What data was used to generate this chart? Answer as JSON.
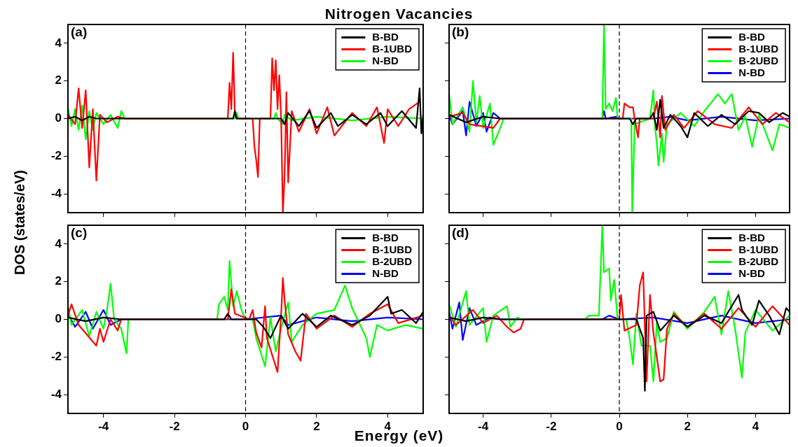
{
  "chart_data": [
    {
      "type": "line",
      "title": "Nitrogen Vacancies",
      "xlabel": "Energy (eV)",
      "ylabel": "DOS (states/eV)",
      "annotations": [
        "(a)"
      ],
      "xlim": [
        -5,
        5
      ],
      "ylim": [
        -5,
        5
      ],
      "xticks": [
        -4,
        -2,
        0,
        2,
        4
      ],
      "yticks": [
        -4,
        -2,
        0,
        2,
        4
      ],
      "tick_labels": "y",
      "legend": "top right",
      "ref_lines": [
        {
          "axis": "x",
          "value": 0,
          "color": "#000000",
          "line_style": "dashed"
        }
      ],
      "series": [
        {
          "name": "B-BD",
          "color": "#000000",
          "x": [
            -5,
            -4.8,
            -4.6,
            -4.4,
            -4.2,
            -3.5,
            -0.35,
            -0.3,
            -0.25,
            1.0,
            1.1,
            1.2,
            1.5,
            1.8,
            2.0,
            2.4,
            2.6,
            3.0,
            3.4,
            3.8,
            4.0,
            4.4,
            4.8,
            4.9,
            4.95,
            5
          ],
          "values": [
            0,
            0.1,
            -0.1,
            0.1,
            0,
            0,
            0,
            0.4,
            0,
            0,
            -0.3,
            0.3,
            -0.4,
            0.4,
            -0.5,
            0.3,
            -0.4,
            0.2,
            -0.3,
            0.3,
            -0.4,
            0.4,
            -0.5,
            1.6,
            -0.8,
            0.2
          ]
        },
        {
          "name": "B-1UBD",
          "color": "#ff0000",
          "x": [
            -5,
            -4.8,
            -4.7,
            -4.6,
            -4.5,
            -4.4,
            -4.3,
            -4.2,
            -4.1,
            -3.9,
            -3.6,
            -3.4,
            -0.5,
            -0.45,
            -0.4,
            -0.35,
            -0.3,
            -0.25,
            0.2,
            0.25,
            0.3,
            0.35,
            0.4,
            0.7,
            0.75,
            0.8,
            0.85,
            0.9,
            0.95,
            1.0,
            1.05,
            1.1,
            1.15,
            1.2,
            1.3,
            1.5,
            1.8,
            2.0,
            2.3,
            2.5,
            3.0,
            3.4,
            3.7,
            3.9,
            4.0,
            4.3,
            4.6,
            4.9
          ],
          "values": [
            0.2,
            -0.3,
            1.6,
            -0.5,
            1.5,
            -2.6,
            0.5,
            -3.3,
            0.2,
            -0.2,
            0.1,
            0,
            0,
            1.9,
            0.5,
            3.5,
            0.2,
            0,
            0,
            -1.5,
            -2.2,
            -3.1,
            0,
            0,
            3.2,
            1.5,
            3.1,
            0.5,
            2.3,
            0.1,
            -5,
            -3,
            1.4,
            -3.4,
            0.4,
            -0.7,
            0.5,
            -0.8,
            0.6,
            -0.9,
            0.3,
            -0.4,
            0.6,
            -1.3,
            0.5,
            -0.4,
            0.5,
            0.9
          ]
        },
        {
          "name": "N-BD",
          "color": "#00ff00",
          "x": [
            -5,
            -4.9,
            -4.8,
            -4.7,
            -4.6,
            -4.5,
            -4.4,
            -4.3,
            -4.2,
            -4,
            -3.8,
            -3.6,
            -3.5,
            -3.4,
            -0.3,
            -0.25,
            -0.2,
            0.8,
            0.85,
            0.9,
            1.05,
            1.1,
            1.3,
            2,
            3,
            4,
            5
          ],
          "values": [
            0.6,
            -0.4,
            0.5,
            -0.6,
            0.7,
            -1.1,
            0.4,
            -0.6,
            0.3,
            -0.3,
            0.2,
            -0.5,
            0.4,
            0,
            0,
            0.3,
            0,
            0,
            0.3,
            0,
            -0.3,
            0.2,
            -0.1,
            0.1,
            -0.1,
            0.1,
            0
          ]
        }
      ]
    },
    {
      "type": "line",
      "annotations": [
        "(b)"
      ],
      "xlim": [
        -5,
        5
      ],
      "ylim": [
        -5,
        5
      ],
      "xticks": [
        -4,
        -2,
        0,
        2,
        4
      ],
      "yticks": [
        -4,
        -2,
        0,
        2,
        4
      ],
      "tick_labels": false,
      "legend": "top right",
      "ref_lines": [
        {
          "axis": "x",
          "value": 0,
          "color": "#000000",
          "line_style": "dashed"
        }
      ],
      "series": [
        {
          "name": "B-BD",
          "color": "#000000",
          "x": [
            -5,
            -4.5,
            -4,
            -3.5,
            0.3,
            0.4,
            0.5,
            0.9,
            1.0,
            1.1,
            1.2,
            1.3,
            1.5,
            1.8,
            2.0,
            2.2,
            2.6,
            3,
            3.4,
            3.8,
            4.1,
            4.4,
            4.8,
            5
          ],
          "values": [
            0.2,
            -0.2,
            0.1,
            0,
            0,
            -0.3,
            0,
            0,
            0.3,
            -0.6,
            1.0,
            -0.5,
            0.2,
            -0.4,
            -1.0,
            0.3,
            -0.4,
            0.2,
            -0.3,
            0.4,
            0.3,
            -0.2,
            0.3,
            0.1
          ]
        },
        {
          "name": "B-1UBD",
          "color": "#ff0000",
          "x": [
            -5,
            -4.6,
            -4.4,
            -3.7,
            -3.5,
            0.1,
            0.15,
            0.3,
            0.4,
            0.45,
            0.55,
            0.6,
            1,
            1.1,
            1.2,
            1.25,
            1.35,
            1.6,
            1.9,
            2.3,
            2.8,
            3.3,
            3.8,
            4.2,
            4.6,
            5
          ],
          "values": [
            0.1,
            0.3,
            -0.3,
            -0.5,
            0,
            0,
            0.8,
            0.6,
            0.6,
            0,
            -1.0,
            0,
            0,
            0.9,
            -1.0,
            1.2,
            -0.6,
            0.2,
            -0.5,
            0.4,
            -0.3,
            -0.5,
            0.6,
            -0.3,
            0.3,
            -0.2
          ]
        },
        {
          "name": "B-2UBD",
          "color": "#00ff00",
          "x": [
            -5,
            -4.9,
            -4.6,
            -4.4,
            -4.3,
            -4.2,
            -4.1,
            -4,
            -3.8,
            -3.7,
            -3.5,
            -3.4,
            -0.5,
            -0.45,
            -0.4,
            -0.3,
            -0.2,
            -0.1,
            -0.05,
            0.35,
            0.38,
            0.45,
            0.9,
            1.0,
            1.05,
            1.1,
            1.15,
            1.25,
            1.3,
            1.4,
            1.8,
            2.2,
            2.5,
            2.9,
            3.1,
            3.3,
            3.5,
            3.7,
            3.9,
            4.1,
            4.5,
            4.7,
            5
          ],
          "values": [
            1.3,
            -0.3,
            0.6,
            -0.7,
            2.0,
            -0.2,
            1.2,
            -0.5,
            0.8,
            -1.4,
            -0.5,
            0,
            0,
            5,
            0.5,
            0.8,
            0.4,
            1.1,
            0,
            0,
            -5,
            -0.3,
            0,
            1.5,
            -0.5,
            -1.3,
            -2.5,
            -0.8,
            -2.3,
            -0.3,
            0.3,
            -0.4,
            0.4,
            1.3,
            0.8,
            1.3,
            -0.6,
            0.1,
            -1.5,
            0.2,
            -1.7,
            -0.3,
            -0.5
          ]
        },
        {
          "name": "N-BD",
          "color": "#0000ff",
          "x": [
            -5,
            -4.9,
            -4.6,
            -4.5,
            -4.4,
            -4.2,
            -4,
            -3.9,
            -3.7,
            -3.5,
            -0.5,
            -0.45,
            -0.4,
            -0.1,
            0,
            1,
            1.5,
            2,
            3,
            4,
            5
          ],
          "values": [
            0.2,
            -0.3,
            0.4,
            -0.9,
            0.9,
            -0.4,
            0.3,
            -0.7,
            0.3,
            0,
            0,
            0.4,
            0,
            0.1,
            0,
            0,
            0.1,
            -0.1,
            0.1,
            -0.1,
            0
          ]
        }
      ]
    },
    {
      "type": "line",
      "annotations": [
        "(c)"
      ],
      "xlim": [
        -5,
        5
      ],
      "ylim": [
        -5,
        5
      ],
      "xticks": [
        -4,
        -2,
        0,
        2,
        4
      ],
      "yticks": [
        -4,
        -2,
        0,
        2,
        4
      ],
      "legend": "top right",
      "ref_lines": [
        {
          "axis": "x",
          "value": 0,
          "color": "#000000",
          "line_style": "dashed"
        }
      ],
      "series": [
        {
          "name": "B-BD",
          "color": "#000000",
          "x": [
            -5,
            -4.5,
            -4,
            -3.5,
            -0.6,
            -0.5,
            -0.4,
            0.3,
            0.5,
            0.7,
            1.0,
            1.2,
            1.6,
            2,
            2.4,
            3,
            3.5,
            4.0,
            4.1,
            4.4,
            4.8,
            5
          ],
          "values": [
            0.1,
            -0.1,
            0.1,
            0,
            0,
            0.3,
            0,
            0,
            -0.4,
            -1.0,
            0.2,
            -0.5,
            0.3,
            -0.4,
            0.2,
            -0.3,
            0.2,
            1.2,
            0.3,
            0.5,
            -0.2,
            0.4
          ]
        },
        {
          "name": "B-1UBD",
          "color": "#ff0000",
          "x": [
            -5,
            -4.9,
            -4.7,
            -4.2,
            -4.1,
            -4,
            -3.8,
            -3.6,
            -3.5,
            -0.5,
            -0.4,
            -0.3,
            0.1,
            0.2,
            0.3,
            0.45,
            0.55,
            0.6,
            0.9,
            1.0,
            1.05,
            1.1,
            1.2,
            1.4,
            1.55,
            1.7,
            2,
            2.5,
            3,
            3.5,
            4,
            4.3,
            5
          ],
          "values": [
            0.2,
            0.8,
            -0.3,
            -1.4,
            -0.5,
            -1.2,
            0,
            -0.6,
            0,
            0,
            1.6,
            0.3,
            0,
            0.5,
            -0.7,
            -1.5,
            0.7,
            -1.0,
            -2.8,
            0.2,
            2.2,
            1.0,
            -0.8,
            -1.7,
            -2.2,
            0.3,
            -0.5,
            0.2,
            -0.4,
            0.3,
            0.8,
            -0.2,
            0.2
          ]
        },
        {
          "name": "B-2UBD",
          "color": "#00ff00",
          "x": [
            -5,
            -4.9,
            -4.6,
            -4.4,
            -4.2,
            -4,
            -3.9,
            -3.8,
            -3.7,
            -3.5,
            -3.35,
            -3.3,
            -0.8,
            -0.75,
            -0.6,
            -0.5,
            -0.45,
            -0.35,
            -0.25,
            -0.1,
            0,
            0.2,
            0.3,
            0.55,
            0.7,
            0.85,
            1.0,
            1.2,
            1.3,
            1.6,
            2.0,
            2.5,
            2.8,
            3.0,
            3.4,
            3.5,
            3.7,
            4,
            4.5,
            5
          ],
          "values": [
            0.7,
            -0.3,
            0.5,
            -0.9,
            0.4,
            -0.5,
            0.5,
            1.9,
            0,
            -0.5,
            -1.8,
            0,
            0,
            0.8,
            1.2,
            0.5,
            3.1,
            0.7,
            1.5,
            0.4,
            0,
            0,
            -1.0,
            -2.5,
            0.1,
            -1.7,
            -0.5,
            0.9,
            -1.2,
            -0.3,
            0.3,
            0.5,
            1.8,
            0.6,
            -1.0,
            -2.0,
            -0.3,
            -0.6,
            -0.3,
            -0.5
          ]
        },
        {
          "name": "N-BD",
          "color": "#0000ff",
          "x": [
            -5,
            -4.8,
            -4.5,
            -4.3,
            -4,
            -3.8,
            -3.5,
            -0.3,
            0,
            1,
            1.2,
            2,
            3,
            4,
            5
          ],
          "values": [
            0.3,
            -0.4,
            0.4,
            -0.5,
            0.5,
            -0.3,
            0,
            0,
            0,
            0.2,
            -0.3,
            0.1,
            -0.1,
            0.1,
            0
          ]
        }
      ]
    },
    {
      "type": "line",
      "annotations": [
        "(d)"
      ],
      "xlim": [
        -5,
        5
      ],
      "ylim": [
        -5,
        5
      ],
      "xticks": [
        -4,
        -2,
        0,
        2,
        4
      ],
      "yticks": [
        -4,
        -2,
        0,
        2,
        4
      ],
      "tick_labels": "x",
      "legend": "top right",
      "ref_lines": [
        {
          "axis": "x",
          "value": 0,
          "color": "#000000",
          "line_style": "dashed"
        }
      ],
      "series": [
        {
          "name": "B-BD",
          "color": "#000000",
          "x": [
            -5,
            -4.5,
            -4,
            -3.5,
            -0.5,
            0.5,
            0.7,
            0.75,
            0.8,
            1.0,
            1.2,
            1.6,
            2,
            2.5,
            3,
            3.5,
            3.6,
            3.9,
            4.1,
            4.4,
            4.7,
            4.9,
            5
          ],
          "values": [
            0.1,
            -0.1,
            0.1,
            0,
            0,
            0,
            -1.0,
            -3.8,
            0.2,
            0.4,
            -0.6,
            0.2,
            -0.4,
            0.2,
            -0.2,
            1.3,
            0.5,
            -0.3,
            1.0,
            0.2,
            -0.8,
            0.6,
            0.4
          ]
        },
        {
          "name": "B-1UBD",
          "color": "#ff0000",
          "x": [
            -5,
            -4.8,
            -4.3,
            -4,
            -3.6,
            -3.3,
            -3.1,
            -2.9,
            -2.8,
            -0.3,
            0,
            0.05,
            0.15,
            0.5,
            0.6,
            0.7,
            0.8,
            0.9,
            1.0,
            1.2,
            1.3,
            1.4,
            1.6,
            2,
            2.5,
            3,
            3.5,
            4,
            4.5,
            5
          ],
          "values": [
            0.2,
            -0.3,
            0.5,
            -0.2,
            0.2,
            -0.4,
            -0.7,
            -0.5,
            0,
            0,
            0,
            1.3,
            -0.6,
            -0.3,
            1.8,
            2.5,
            -3.3,
            1.3,
            -0.7,
            -3.3,
            -3.2,
            -0.5,
            0.3,
            -0.4,
            0.3,
            -0.5,
            0.6,
            -0.4,
            0.7,
            -0.3
          ]
        },
        {
          "name": "B-2UBD",
          "color": "#00ff00",
          "x": [
            -5,
            -4.8,
            -4.5,
            -4.4,
            -4,
            -3.9,
            -3.7,
            -3.3,
            -3.2,
            -3,
            -2.9,
            -1,
            -0.9,
            -0.6,
            -0.5,
            -0.45,
            -0.3,
            -0.25,
            -0.15,
            -0.05,
            0.2,
            0.3,
            0.4,
            0.5,
            0.65,
            0.9,
            1.0,
            1.1,
            1.2,
            1.4,
            1.6,
            2,
            2.5,
            2.8,
            3.0,
            3.2,
            3.4,
            3.6,
            3.7,
            4,
            4.5,
            5
          ],
          "values": [
            0.8,
            -0.4,
            1.5,
            -0.3,
            0.6,
            -1.2,
            0.2,
            0.7,
            -0.4,
            0.1,
            0,
            0,
            0.2,
            0.2,
            5,
            2.5,
            2.7,
            1.0,
            2.1,
            0,
            0,
            -1.0,
            -2.4,
            0.3,
            -1.4,
            -1.4,
            -3.3,
            -0.2,
            -1.2,
            -1.0,
            0.4,
            -0.5,
            0.4,
            1.2,
            -0.8,
            1.5,
            -0.5,
            -3.1,
            -0.7,
            0.5,
            -0.6,
            0.2
          ]
        },
        {
          "name": "N-BD",
          "color": "#0000ff",
          "x": [
            -5,
            -4.9,
            -4.7,
            -4.6,
            -4.4,
            -4.2,
            -3.8,
            -3.5,
            -0.5,
            -0.3,
            0,
            1,
            2,
            3,
            4,
            5
          ],
          "values": [
            0.4,
            -0.5,
            0.9,
            -1.1,
            0.6,
            -0.3,
            0.1,
            0,
            0,
            0.2,
            0,
            0.1,
            -0.2,
            0.2,
            -0.2,
            0
          ]
        }
      ]
    }
  ]
}
